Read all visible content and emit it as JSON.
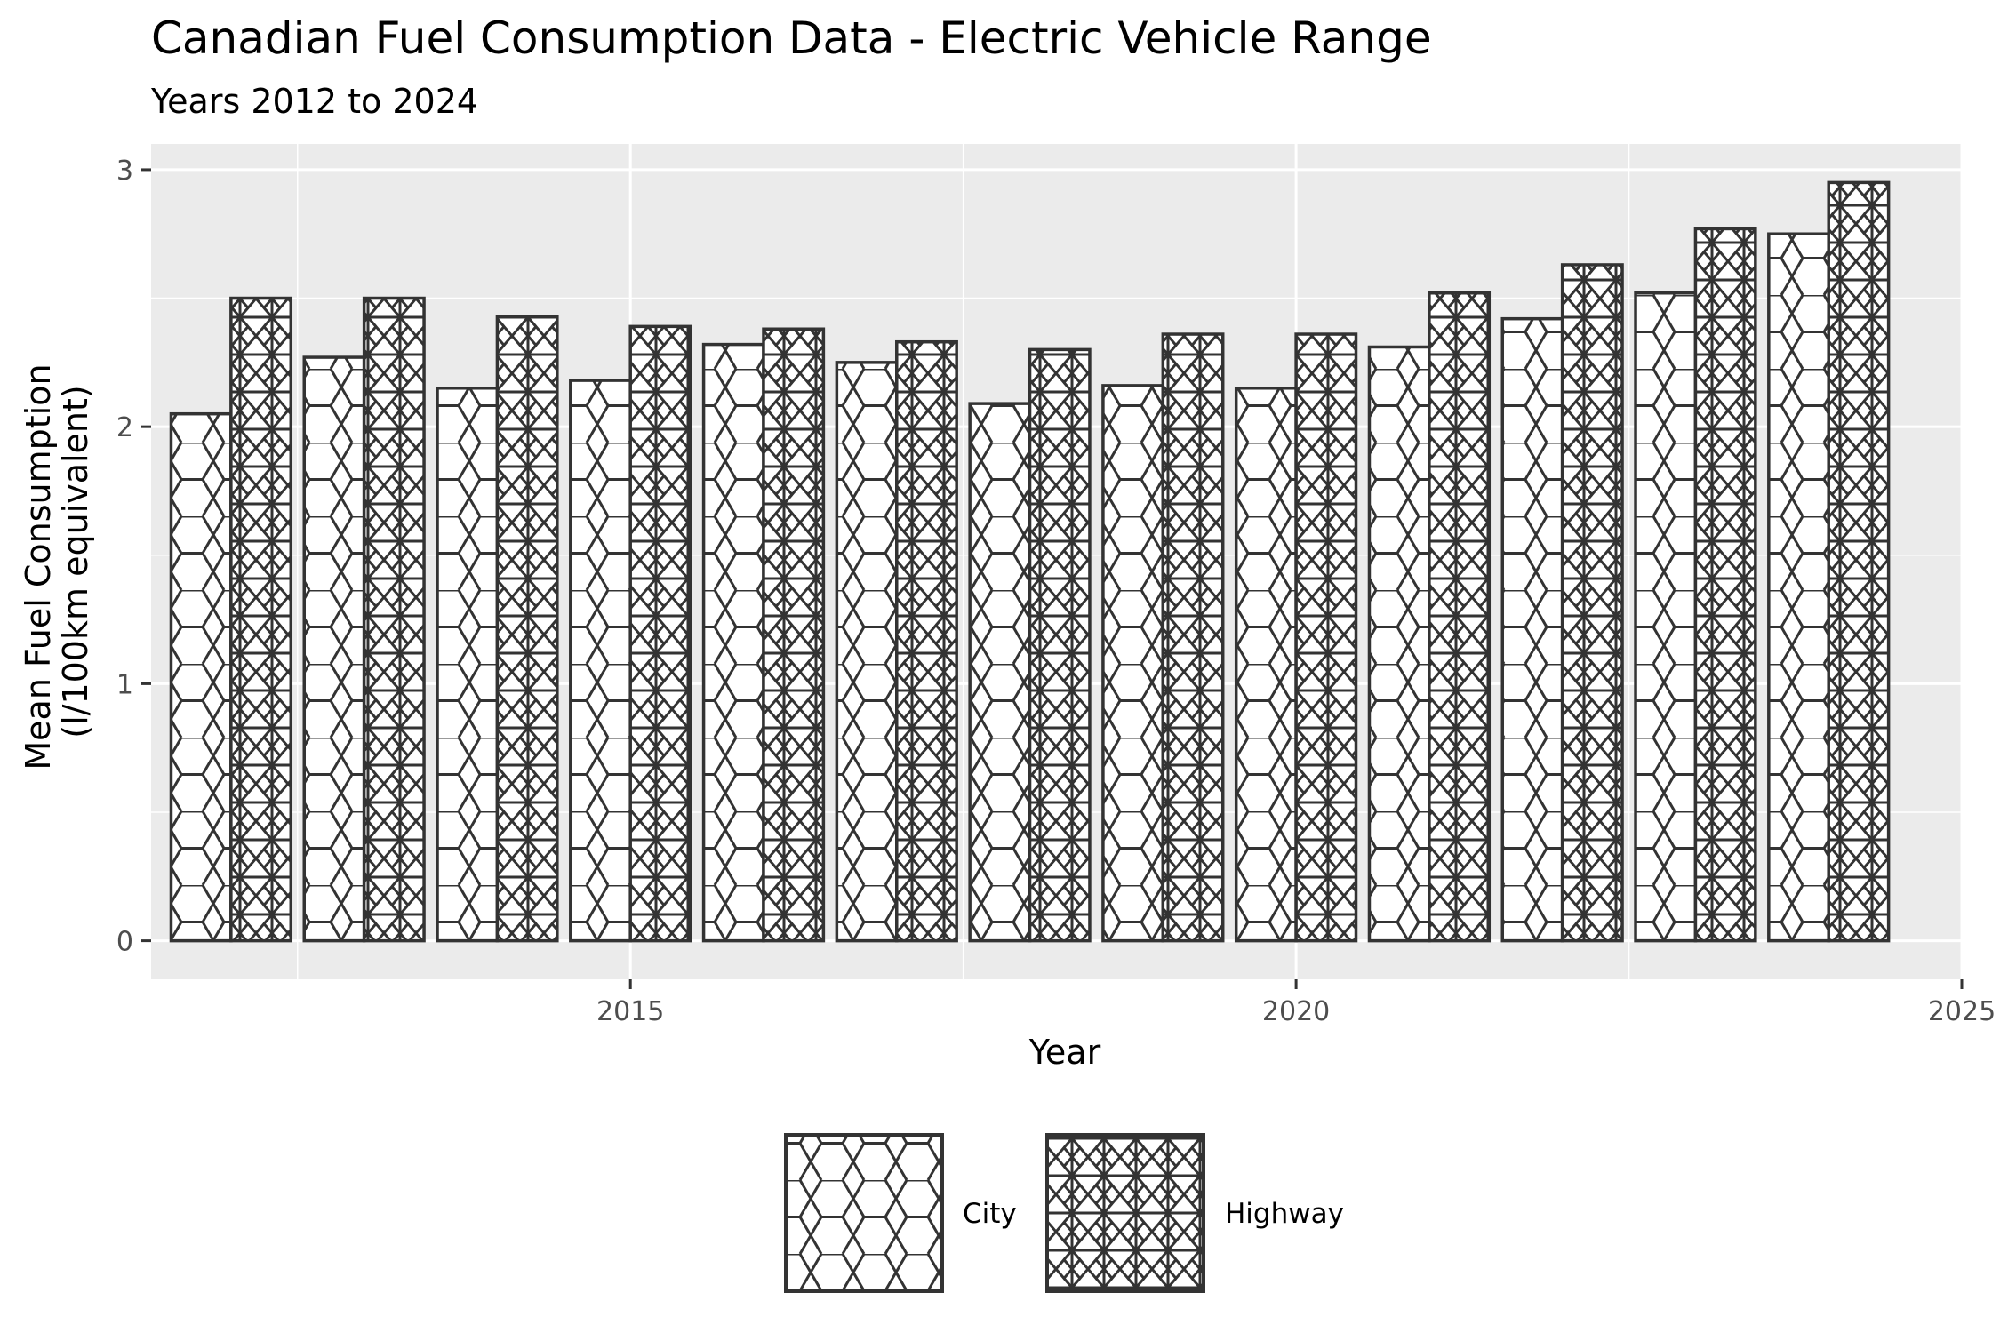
{
  "chart_data": {
    "type": "bar",
    "title": "Canadian Fuel Consumption Data - Electric Vehicle Range",
    "subtitle": "Years 2012 to 2024",
    "xlabel": "Year",
    "ylabel": "Mean Fuel Consumption",
    "ylabel_line2": "(l/100km equivalent)",
    "x_ticks": [
      "2015",
      "2020",
      "2025"
    ],
    "y_ticks": [
      "0",
      "1",
      "2",
      "3"
    ],
    "xlim": [
      2011.4,
      2025
    ],
    "ylim": [
      -0.15,
      3.1
    ],
    "x": [
      2012,
      2013,
      2014,
      2015,
      2016,
      2017,
      2018,
      2019,
      2020,
      2021,
      2022,
      2023,
      2024
    ],
    "series": [
      {
        "name": "City",
        "pattern": "hexagon",
        "values": [
          2.05,
          2.27,
          2.15,
          2.18,
          2.32,
          2.25,
          2.09,
          2.16,
          2.15,
          2.31,
          2.42,
          2.52,
          2.75
        ]
      },
      {
        "name": "Highway",
        "pattern": "star-lattice",
        "values": [
          2.5,
          2.5,
          2.43,
          2.39,
          2.38,
          2.33,
          2.3,
          2.36,
          2.36,
          2.52,
          2.63,
          2.77,
          2.95
        ]
      }
    ],
    "legend_position": "bottom",
    "grid": true,
    "colors": {
      "panel": "#ebebeb",
      "grid": "#ffffff",
      "bar_fill": "#ffffff",
      "bar_stroke": "#333333",
      "tick": "#333333"
    }
  }
}
